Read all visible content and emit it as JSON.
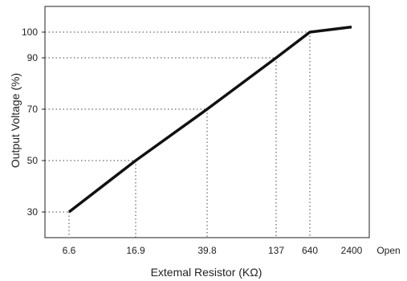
{
  "chart_data": {
    "type": "line",
    "xlabel": "Extemal Resistor (KΩ)",
    "ylabel": "Output Voltage (%)",
    "x_scale": "categorical",
    "x_ticks": [
      "6.6",
      "16.9",
      "39.8",
      "137",
      "640",
      "2400",
      "Open"
    ],
    "y_ticks": [
      30,
      50,
      70,
      90,
      100
    ],
    "ylim": [
      20,
      110
    ],
    "grid": "dotted reference lines to curve",
    "series": [
      {
        "points": [
          {
            "x": "6.6",
            "y": 30
          },
          {
            "x": "16.9",
            "y": 50
          },
          {
            "x": "39.8",
            "y": 70
          },
          {
            "x": "137",
            "y": 90
          },
          {
            "x": "640",
            "y": 100
          },
          {
            "x": "2400",
            "y": 102
          }
        ],
        "color": "#111111"
      }
    ],
    "reference_points": [
      {
        "x": "6.6",
        "y": 30
      },
      {
        "x": "16.9",
        "y": 50
      },
      {
        "x": "39.8",
        "y": 70
      },
      {
        "x": "137",
        "y": 90
      },
      {
        "x": "640",
        "y": 100
      }
    ]
  }
}
